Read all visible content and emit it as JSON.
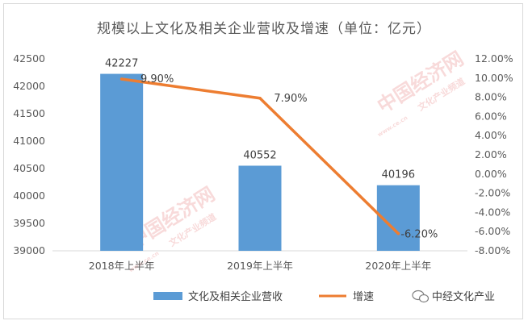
{
  "chart_data": {
    "type": "bar+line",
    "title": "规模以上文化及相关企业营收及增速（单位：亿元）",
    "categories": [
      "2018年上半年",
      "2019年上半年",
      "2020年上半年"
    ],
    "series": [
      {
        "name": "文化及相关企业营收",
        "type": "bar",
        "axis": "left",
        "values": [
          42227,
          40552,
          40196
        ],
        "data_labels": [
          "42227",
          "40552",
          "40196"
        ],
        "color": "#5b9bd5"
      },
      {
        "name": "增速",
        "type": "line",
        "axis": "right",
        "values": [
          9.9,
          7.9,
          -6.2
        ],
        "data_labels": [
          "9.90%",
          "7.90%",
          "-6.20%"
        ],
        "color": "#ed7d31"
      }
    ],
    "y_left": {
      "ylim": [
        39000,
        42500
      ],
      "ticks": [
        "42500",
        "42000",
        "41500",
        "41000",
        "40500",
        "40000",
        "39500",
        "39000"
      ]
    },
    "y_right": {
      "ylim": [
        -8,
        12
      ],
      "ticks": [
        "12.00%",
        "10.00%",
        "8.00%",
        "6.00%",
        "4.00%",
        "2.00%",
        "0.00%",
        "-2.00%",
        "-4.00%",
        "-6.00%",
        "-8.00%"
      ]
    },
    "grid": false,
    "legend_position": "bottom"
  },
  "watermarks": {
    "main": "中国经济网",
    "sub": "文化产业频道",
    "url": "www.ce.cn"
  },
  "source_mark": "中经文化产业"
}
